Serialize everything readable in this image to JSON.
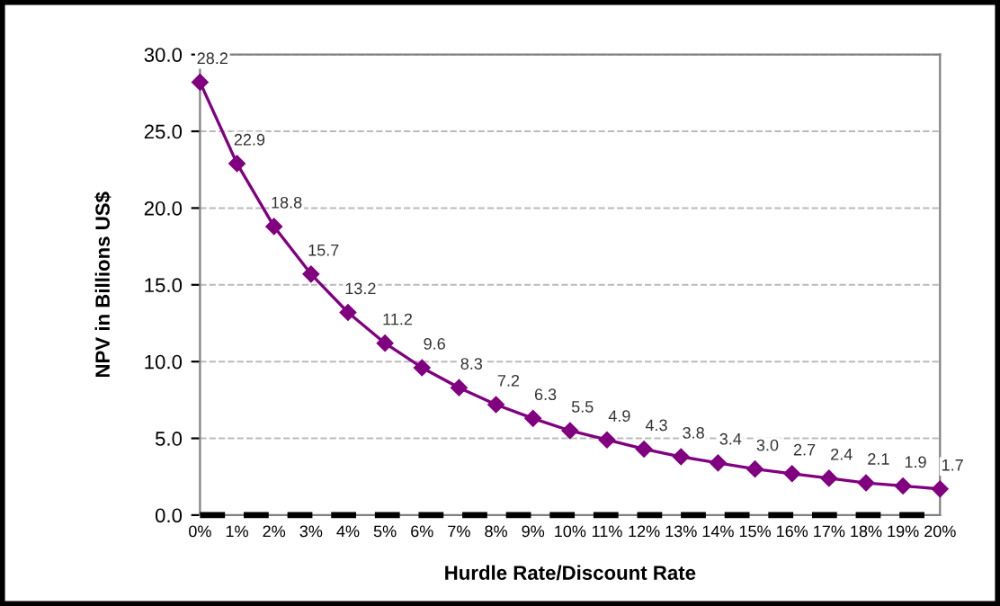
{
  "chart_data": {
    "type": "line",
    "xlabel": "Hurdle Rate/Discount Rate",
    "ylabel": "NPV in Billions US$",
    "categories": [
      "0%",
      "1%",
      "2%",
      "3%",
      "4%",
      "5%",
      "6%",
      "7%",
      "8%",
      "9%",
      "10%",
      "11%",
      "12%",
      "13%",
      "14%",
      "15%",
      "16%",
      "17%",
      "18%",
      "19%",
      "20%"
    ],
    "series": [
      {
        "color": "#800080",
        "marker": "diamond",
        "line_style": "solid",
        "values": [
          28.2,
          22.9,
          18.8,
          15.7,
          13.2,
          11.2,
          9.6,
          8.3,
          7.2,
          6.3,
          5.5,
          4.9,
          4.3,
          3.8,
          3.4,
          3.0,
          2.7,
          2.4,
          2.1,
          1.9,
          1.7
        ],
        "value_labels": [
          "28.2",
          "22.9",
          "18.8",
          "15.7",
          "13.2",
          "11.2",
          "9.6",
          "8.3",
          "7.2",
          "6.3",
          "5.5",
          "4.9",
          "4.3",
          "3.8",
          "3.4",
          "3.0",
          "2.7",
          "2.4",
          "2.1",
          "1.9",
          "1.7"
        ]
      },
      {
        "color": "#000000",
        "marker": "none",
        "line_style": "dashed",
        "values": [
          0,
          0,
          0,
          0,
          0,
          0,
          0,
          0,
          0,
          0,
          0,
          0,
          0,
          0,
          0,
          0,
          0,
          0,
          0,
          0,
          0
        ]
      }
    ],
    "ylim": [
      0,
      30
    ],
    "yticks": [
      {
        "value": 0,
        "label": "0.0"
      },
      {
        "value": 5,
        "label": "5.0"
      },
      {
        "value": 10,
        "label": "10.0"
      },
      {
        "value": 15,
        "label": "15.0"
      },
      {
        "value": 20,
        "label": "20.0"
      },
      {
        "value": 25,
        "label": "25.0"
      },
      {
        "value": 30,
        "label": "30.0"
      }
    ],
    "grid": "y",
    "legend": false
  }
}
